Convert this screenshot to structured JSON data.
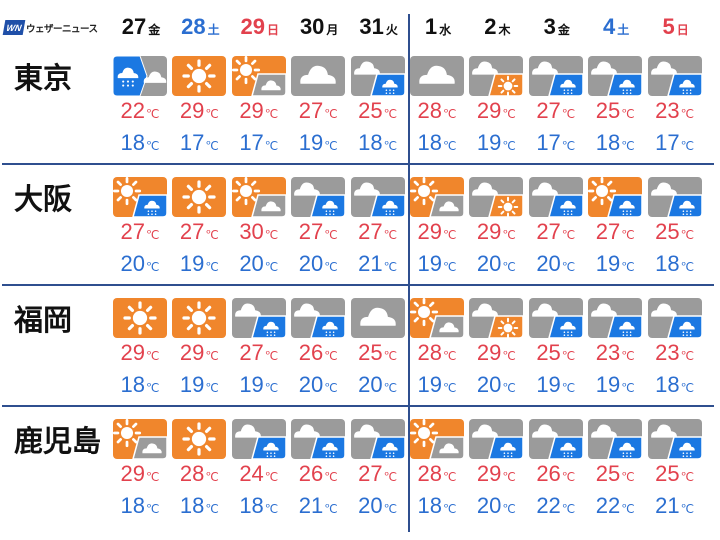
{
  "brand": {
    "logo_mark": "WN",
    "name": "ウェザーニュース"
  },
  "colors": {
    "sunny": "#f0862c",
    "cloudy": "#9b9b9b",
    "rain": "#1b78e2",
    "high": "#e2414d",
    "low": "#2b6ed0",
    "saturday": "#2b6ed0",
    "sunday": "#e2414d",
    "weekday": "#111111",
    "divider": "#2f4f8f"
  },
  "unit": "℃",
  "days": [
    {
      "date": "27",
      "weekday": "金",
      "type": "weekday"
    },
    {
      "date": "28",
      "weekday": "土",
      "type": "saturday"
    },
    {
      "date": "29",
      "weekday": "日",
      "type": "sunday"
    },
    {
      "date": "30",
      "weekday": "月",
      "type": "weekday"
    },
    {
      "date": "31",
      "weekday": "火",
      "type": "weekday"
    },
    {
      "date": "1",
      "weekday": "水",
      "type": "weekday"
    },
    {
      "date": "2",
      "weekday": "木",
      "type": "weekday"
    },
    {
      "date": "3",
      "weekday": "金",
      "type": "weekday"
    },
    {
      "date": "4",
      "weekday": "土",
      "type": "saturday"
    },
    {
      "date": "5",
      "weekday": "日",
      "type": "sunday"
    }
  ],
  "cities": [
    {
      "name": "東京",
      "icons": [
        "rain-then-cloudy",
        "sunny",
        "sunny-partly-cloudy",
        "cloudy",
        "cloudy-partly-rain",
        "cloudy",
        "cloudy-partly-sunny",
        "cloudy-partly-rain",
        "cloudy-partly-rain",
        "cloudy-partly-rain"
      ],
      "high": [
        "22",
        "29",
        "29",
        "27",
        "25",
        "28",
        "29",
        "27",
        "25",
        "23"
      ],
      "low": [
        "18",
        "17",
        "17",
        "19",
        "18",
        "18",
        "19",
        "17",
        "18",
        "17"
      ]
    },
    {
      "name": "大阪",
      "icons": [
        "sunny-partly-rain",
        "sunny",
        "sunny-partly-cloudy",
        "cloudy-partly-rain",
        "cloudy-partly-rain",
        "sunny-partly-cloudy",
        "cloudy-partly-sunny",
        "cloudy-partly-rain",
        "sunny-partly-rain",
        "cloudy-partly-rain"
      ],
      "high": [
        "27",
        "27",
        "30",
        "27",
        "27",
        "29",
        "29",
        "27",
        "27",
        "25"
      ],
      "low": [
        "20",
        "19",
        "20",
        "20",
        "21",
        "19",
        "20",
        "20",
        "19",
        "18"
      ]
    },
    {
      "name": "福岡",
      "icons": [
        "sunny",
        "sunny",
        "cloudy-partly-rain",
        "cloudy-partly-rain",
        "cloudy",
        "sunny-partly-cloudy",
        "cloudy-partly-sunny",
        "cloudy-partly-rain",
        "cloudy-partly-rain",
        "cloudy-partly-rain"
      ],
      "high": [
        "29",
        "29",
        "27",
        "26",
        "25",
        "28",
        "29",
        "25",
        "23",
        "23"
      ],
      "low": [
        "18",
        "19",
        "19",
        "20",
        "20",
        "19",
        "20",
        "19",
        "19",
        "18"
      ]
    },
    {
      "name": "鹿児島",
      "icons": [
        "sunny-partly-cloudy",
        "sunny",
        "cloudy-partly-rain",
        "cloudy-partly-rain",
        "cloudy-partly-rain",
        "sunny-partly-cloudy",
        "cloudy-partly-rain",
        "cloudy-partly-rain",
        "cloudy-partly-rain",
        "cloudy-partly-rain"
      ],
      "high": [
        "29",
        "28",
        "24",
        "26",
        "27",
        "28",
        "29",
        "26",
        "25",
        "25"
      ],
      "low": [
        "18",
        "18",
        "18",
        "21",
        "20",
        "18",
        "20",
        "22",
        "22",
        "21"
      ]
    }
  ]
}
